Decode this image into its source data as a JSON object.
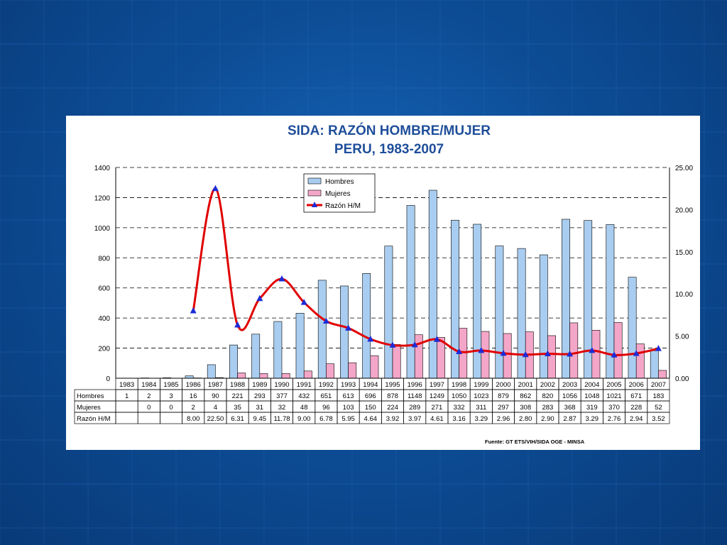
{
  "colors": {
    "hombres_fill": "#a9cdf0",
    "mujeres_fill": "#f4a6c8",
    "ratio_line": "#e00000",
    "ratio_marker": "#1e2bd6",
    "title": "#1f4e9a",
    "background": "#0d4d96"
  },
  "chart_data": {
    "type": "bar",
    "title": "SIDA: RAZÓN HOMBRE/MUJER",
    "subtitle": "PERU, 1983-2007",
    "categories": [
      "1983",
      "1984",
      "1985",
      "1986",
      "1987",
      "1988",
      "1989",
      "1990",
      "1991",
      "1992",
      "1993",
      "1994",
      "1995",
      "1996",
      "1997",
      "1998",
      "1999",
      "2000",
      "2001",
      "2002",
      "2003",
      "2004",
      "2005",
      "2006",
      "2007"
    ],
    "series": [
      {
        "name": "Hombres",
        "type": "bar",
        "axis": "left",
        "values": [
          1,
          2,
          3,
          16,
          90,
          221,
          293,
          377,
          432,
          651,
          613,
          696,
          878,
          1148,
          1249,
          1050,
          1023,
          879,
          862,
          820,
          1056,
          1048,
          1021,
          671,
          183
        ]
      },
      {
        "name": "Mujeres",
        "type": "bar",
        "axis": "left",
        "values": [
          null,
          0,
          0,
          2,
          4,
          35,
          31,
          32,
          48,
          96,
          103,
          150,
          224,
          289,
          271,
          332,
          311,
          297,
          308,
          283,
          368,
          319,
          370,
          228,
          52
        ]
      },
      {
        "name": "Razón H/M",
        "type": "line",
        "axis": "right",
        "values": [
          null,
          null,
          null,
          8.0,
          22.5,
          6.31,
          9.45,
          11.78,
          9.0,
          6.78,
          5.95,
          4.64,
          3.92,
          3.97,
          4.61,
          3.16,
          3.29,
          2.96,
          2.8,
          2.9,
          2.87,
          3.29,
          2.76,
          2.94,
          3.52
        ]
      }
    ],
    "left_ticks": [
      "0",
      "200",
      "400",
      "600",
      "800",
      "1000",
      "1200",
      "1400"
    ],
    "right_ticks": [
      "0.00",
      "5.00",
      "10.00",
      "15.00",
      "20.00",
      "25.00"
    ],
    "ylim_left": [
      0,
      1400
    ],
    "ylim_right": [
      0,
      25
    ],
    "grid": true,
    "legend_position": "top-center",
    "table": {
      "row_labels": [
        "Hombres",
        "Mujeres",
        "Razón H/M"
      ],
      "rows": [
        [
          "1",
          "2",
          "3",
          "16",
          "90",
          "221",
          "293",
          "377",
          "432",
          "651",
          "613",
          "696",
          "878",
          "1148",
          "1249",
          "1050",
          "1023",
          "879",
          "862",
          "820",
          "1056",
          "1048",
          "1021",
          "671",
          "183"
        ],
        [
          "",
          "0",
          "0",
          "2",
          "4",
          "35",
          "31",
          "32",
          "48",
          "96",
          "103",
          "150",
          "224",
          "289",
          "271",
          "332",
          "311",
          "297",
          "308",
          "283",
          "368",
          "319",
          "370",
          "228",
          "52"
        ],
        [
          "",
          "",
          "",
          "8.00",
          "22.50",
          "6.31",
          "9.45",
          "11.78",
          "9.00",
          "6.78",
          "5.95",
          "4.64",
          "3.92",
          "3.97",
          "4.61",
          "3.16",
          "3.29",
          "2.96",
          "2.80",
          "2.90",
          "2.87",
          "3.29",
          "2.76",
          "2.94",
          "3.52"
        ]
      ]
    },
    "source": "Fuente: GT ETS/VIH/SIDA OGE - MINSA"
  }
}
